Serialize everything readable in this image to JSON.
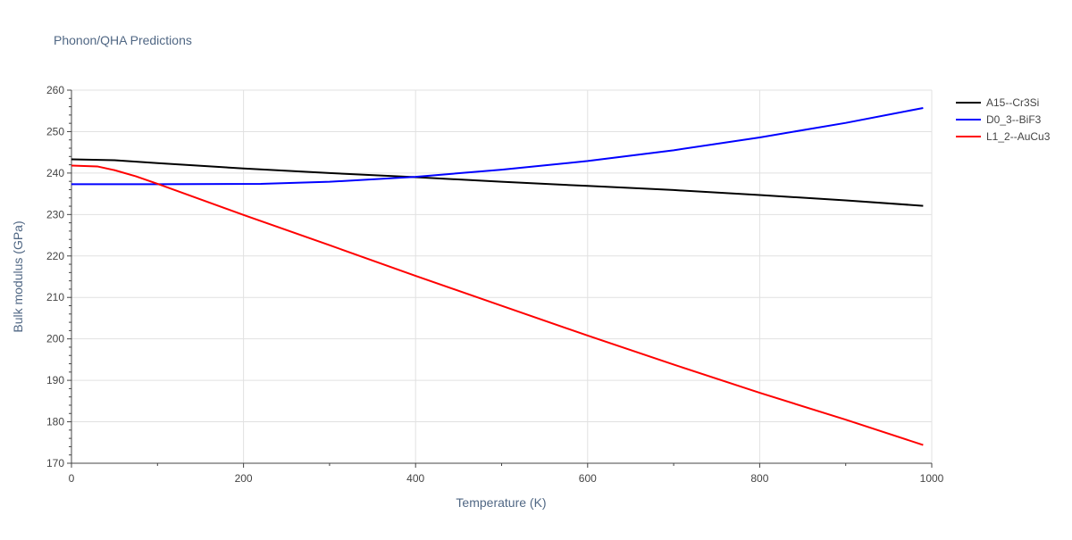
{
  "chart_data": {
    "type": "line",
    "title": "Phonon/QHA Predictions",
    "xlabel": "Temperature (K)",
    "ylabel": "Bulk modulus (GPa)",
    "xlim": [
      0,
      1000
    ],
    "ylim": [
      170,
      260
    ],
    "x_ticks": [
      0,
      200,
      400,
      600,
      800,
      1000
    ],
    "y_ticks": [
      170,
      180,
      190,
      200,
      210,
      220,
      230,
      240,
      250,
      260
    ],
    "grid": true,
    "legend_position": "top-right",
    "series": [
      {
        "name": "A15--Cr3Si",
        "color": "#000000",
        "x": [
          0,
          50,
          100,
          200,
          300,
          400,
          500,
          600,
          700,
          800,
          900,
          990
        ],
        "y": [
          243.3,
          243.1,
          242.4,
          241.1,
          240.0,
          239.0,
          237.9,
          236.9,
          235.9,
          234.7,
          233.4,
          232.1
        ]
      },
      {
        "name": "D0_3--BiF3",
        "color": "#0000ff",
        "x": [
          0,
          100,
          220,
          300,
          400,
          500,
          600,
          700,
          800,
          900,
          990
        ],
        "y": [
          237.3,
          237.3,
          237.4,
          237.9,
          239.1,
          240.8,
          242.9,
          245.5,
          248.6,
          252.1,
          255.7
        ]
      },
      {
        "name": "L1_2--AuCu3",
        "color": "#ff0000",
        "x": [
          0,
          30,
          50,
          75,
          100,
          200,
          300,
          400,
          500,
          600,
          700,
          800,
          900,
          990
        ],
        "y": [
          241.8,
          241.6,
          240.7,
          239.2,
          237.4,
          229.9,
          222.6,
          215.2,
          208.0,
          200.8,
          193.8,
          187.0,
          180.5,
          174.4
        ]
      }
    ]
  }
}
